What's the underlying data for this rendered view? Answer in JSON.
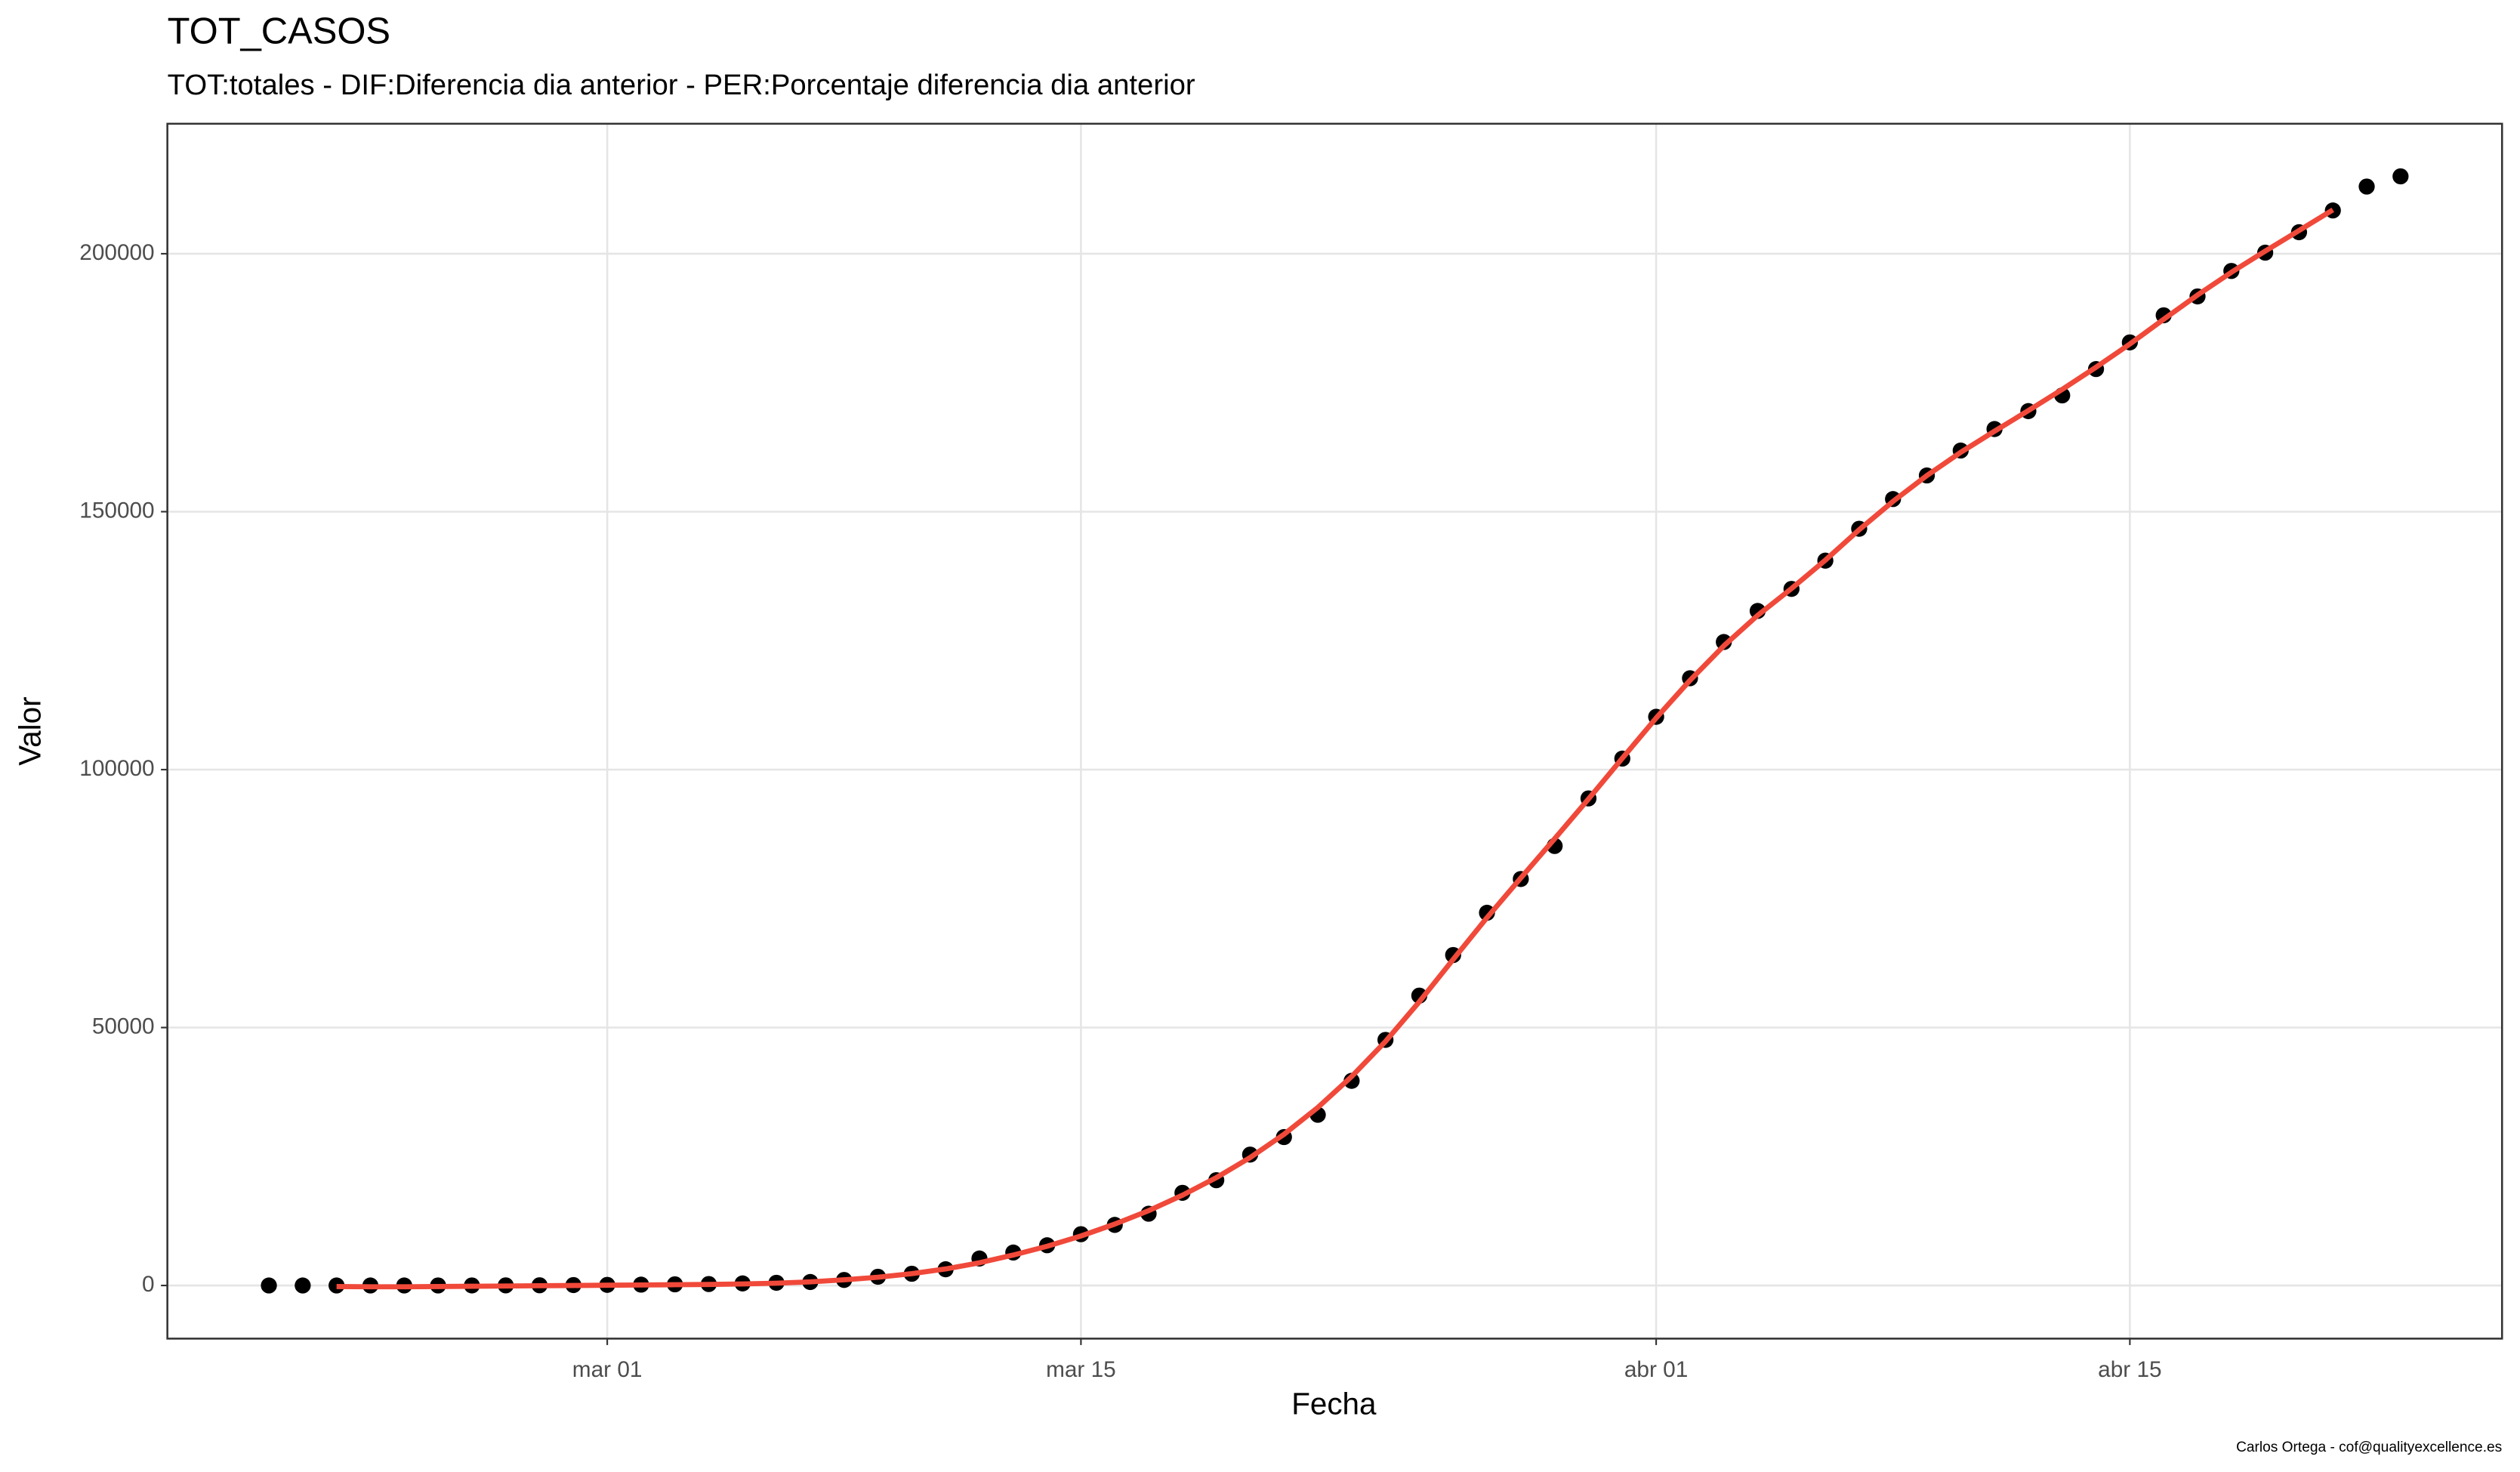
{
  "chart_data": {
    "type": "scatter-line",
    "title": "TOT_CASOS",
    "subtitle": "TOT:totales - DIF:Diferencia dia anterior - PER:Porcentaje diferencia dia anterior",
    "x_label": "Fecha",
    "y_label": "Valor",
    "caption": "Carlos Ortega - cof@qualityexcellence.es",
    "x": [
      "02-20",
      "02-21",
      "02-22",
      "02-23",
      "02-24",
      "02-25",
      "02-26",
      "02-27",
      "02-28",
      "02-29",
      "03-01",
      "03-02",
      "03-03",
      "03-04",
      "03-05",
      "03-06",
      "03-07",
      "03-08",
      "03-09",
      "03-10",
      "03-11",
      "03-12",
      "03-13",
      "03-14",
      "03-15",
      "03-16",
      "03-17",
      "03-18",
      "03-19",
      "03-20",
      "03-21",
      "03-22",
      "03-23",
      "03-24",
      "03-25",
      "03-26",
      "03-27",
      "03-28",
      "03-29",
      "03-30",
      "03-31",
      "04-01",
      "04-02",
      "04-03",
      "04-04",
      "04-05",
      "04-06",
      "04-07",
      "04-08",
      "04-09",
      "04-10",
      "04-11",
      "04-12",
      "04-13",
      "04-14",
      "04-15",
      "04-16",
      "04-17",
      "04-18",
      "04-19",
      "04-20",
      "04-21",
      "04-22",
      "04-23"
    ],
    "series": [
      {
        "kind": "points",
        "color": "#000000",
        "values": [
          2,
          2,
          2,
          2,
          3,
          7,
          12,
          23,
          45,
          84,
          120,
          165,
          228,
          282,
          401,
          525,
          673,
          1073,
          1695,
          2277,
          3146,
          5232,
          6391,
          7798,
          9942,
          11748,
          13910,
          17963,
          20410,
          25374,
          28768,
          33089,
          39673,
          47610,
          56188,
          64059,
          72248,
          78797,
          85195,
          94417,
          102136,
          110238,
          117710,
          124736,
          130759,
          135032,
          140510,
          146690,
          152446,
          157022,
          161852,
          166019,
          169496,
          172541,
          177644,
          182816,
          188068,
          191726,
          196664,
          200210,
          204178,
          208389,
          213024,
          215000
        ]
      },
      {
        "kind": "line",
        "color": "#f0493a",
        "values": [
          null,
          null,
          -200,
          -250,
          -250,
          -200,
          -150,
          -100,
          -50,
          0,
          50,
          100,
          150,
          200,
          300,
          450,
          700,
          1100,
          1600,
          2300,
          3200,
          4400,
          5900,
          7600,
          9600,
          11900,
          14500,
          17500,
          20900,
          24800,
          29300,
          34500,
          40500,
          47300,
          55000,
          63200,
          71300,
          79000,
          86600,
          94300,
          102200,
          110000,
          117300,
          124000,
          129900,
          135100,
          140600,
          146500,
          152000,
          157000,
          161500,
          165600,
          169600,
          173700,
          178000,
          182500,
          187300,
          192000,
          196400,
          200500,
          204500,
          208500,
          null,
          null
        ]
      }
    ],
    "xlim": [
      "02-17",
      "04-26"
    ],
    "xticks": [
      {
        "value": "03-01",
        "label": "mar 01"
      },
      {
        "value": "03-15",
        "label": "mar 15"
      },
      {
        "value": "04-01",
        "label": "abr 01"
      },
      {
        "value": "04-15",
        "label": "abr 15"
      }
    ],
    "ylim": [
      -10300,
      225200
    ],
    "yticks": [
      0,
      50000,
      100000,
      150000,
      200000
    ],
    "grid": true
  }
}
